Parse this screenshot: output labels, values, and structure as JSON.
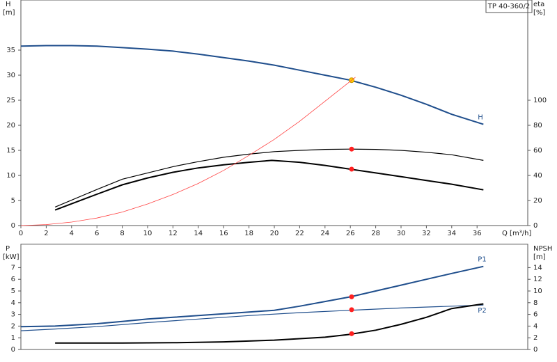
{
  "chart_data": [
    {
      "type": "line",
      "title": "TP 40-360/2",
      "ylabel": "H",
      "yunit": "[m]",
      "y2label": "eta",
      "y2unit": "[%]",
      "xlabel": "Q [m³/h]",
      "xlim": [
        0,
        40
      ],
      "xticks": [
        0,
        2,
        4,
        6,
        8,
        10,
        12,
        14,
        16,
        18,
        20,
        22,
        24,
        26,
        28,
        30,
        32,
        34,
        36
      ],
      "ylim": [
        0,
        45
      ],
      "yticks": [
        0,
        5,
        10,
        15,
        20,
        25,
        30,
        35
      ],
      "y2lim": [
        0,
        180
      ],
      "y2ticks": [
        0,
        20,
        40,
        60,
        80,
        100
      ],
      "series": [
        {
          "name": "H",
          "color": "#1f4e8c",
          "width": 2,
          "x": [
            0,
            2,
            4,
            6,
            8,
            10,
            12,
            14,
            16,
            18,
            20,
            22,
            24,
            26,
            28,
            30,
            32,
            34,
            36.5
          ],
          "values": [
            35.8,
            35.9,
            35.9,
            35.8,
            35.5,
            35.2,
            34.8,
            34.2,
            33.5,
            32.8,
            32.0,
            31.0,
            30.0,
            29.0,
            27.6,
            26.0,
            24.2,
            22.2,
            20.2
          ],
          "duty_point": {
            "x": 26.1,
            "value": 29,
            "color": "#ffd000"
          }
        },
        {
          "color": "#000000",
          "width": 1.2,
          "axis": "y2",
          "x": [
            2.7,
            6,
            8,
            10,
            12,
            14,
            16,
            18,
            20,
            22,
            24,
            26,
            28,
            30,
            32,
            34,
            36.5
          ],
          "values": [
            14.8,
            28.8,
            37,
            42,
            47,
            51,
            54.5,
            57,
            59,
            60,
            60.8,
            61,
            60.8,
            60,
            58.5,
            56.5,
            52
          ],
          "duty_point": {
            "x": 26.1,
            "value": 61,
            "color": "#ff2020"
          }
        },
        {
          "color": "#000000",
          "width": 2,
          "axis": "y2",
          "x": [
            2.7,
            6,
            8,
            10,
            12,
            14,
            16,
            18,
            19.8,
            22,
            24,
            26,
            28,
            30,
            32,
            34,
            36.5
          ],
          "values": [
            12.4,
            25,
            32.5,
            38,
            42.5,
            46,
            48.5,
            50.5,
            52,
            50.5,
            48,
            45,
            42,
            39,
            36,
            33,
            28.5
          ],
          "duty_point": {
            "x": 26.1,
            "value": 45,
            "color": "#ff2020"
          }
        },
        {
          "color": "#ff4040",
          "width": 0.8,
          "x": [
            0,
            2,
            4,
            6,
            8,
            10,
            12,
            14,
            16,
            18,
            20,
            22,
            24,
            26.4
          ],
          "values": [
            0,
            0.2,
            0.7,
            1.5,
            2.7,
            4.3,
            6.2,
            8.4,
            11,
            14,
            17.2,
            20.8,
            24.8,
            29.6
          ]
        }
      ]
    },
    {
      "type": "line",
      "ylabel": "P",
      "yunit": "[kW]",
      "y2label": "NPSH",
      "y2unit": "[m]",
      "xlim": [
        0,
        40
      ],
      "ylim": [
        0,
        9
      ],
      "yticks": [
        0,
        1,
        2,
        3,
        4,
        5,
        6,
        7
      ],
      "y2lim": [
        0,
        18
      ],
      "y2ticks": [
        0,
        2,
        4,
        6,
        8,
        10,
        12,
        14
      ],
      "series": [
        {
          "name": "P1",
          "color": "#1f4e8c",
          "width": 2,
          "x": [
            0,
            2.7,
            6,
            8,
            10,
            12,
            14,
            16,
            18,
            20,
            22,
            24,
            26,
            28,
            30,
            32,
            34,
            36.5
          ],
          "values": [
            1.95,
            2.0,
            2.2,
            2.4,
            2.6,
            2.75,
            2.9,
            3.05,
            3.2,
            3.35,
            3.7,
            4.1,
            4.5,
            5.0,
            5.5,
            6.0,
            6.5,
            7.1
          ],
          "duty_point": {
            "x": 26.1,
            "value": 4.5,
            "color": "#ff2020"
          }
        },
        {
          "name": "P2",
          "color": "#1f4e8c",
          "width": 1.2,
          "x": [
            0,
            2.7,
            6,
            10,
            14,
            18,
            22,
            26,
            30,
            34,
            36.5
          ],
          "values": [
            1.6,
            1.75,
            1.95,
            2.3,
            2.6,
            2.9,
            3.15,
            3.35,
            3.55,
            3.7,
            3.8
          ],
          "duty_point": {
            "x": 26.1,
            "value": 3.4,
            "color": "#ff2020"
          }
        },
        {
          "color": "#000000",
          "width": 2,
          "axis": "y2",
          "x": [
            2.7,
            8,
            12,
            16,
            20,
            24,
            26,
            28,
            30,
            32,
            34,
            36.5
          ],
          "values": [
            1.1,
            1.1,
            1.15,
            1.3,
            1.6,
            2.1,
            2.6,
            3.3,
            4.3,
            5.5,
            7.0,
            7.8
          ],
          "duty_point": {
            "x": 26.1,
            "value": 2.7,
            "color": "#ff2020"
          }
        }
      ]
    }
  ]
}
